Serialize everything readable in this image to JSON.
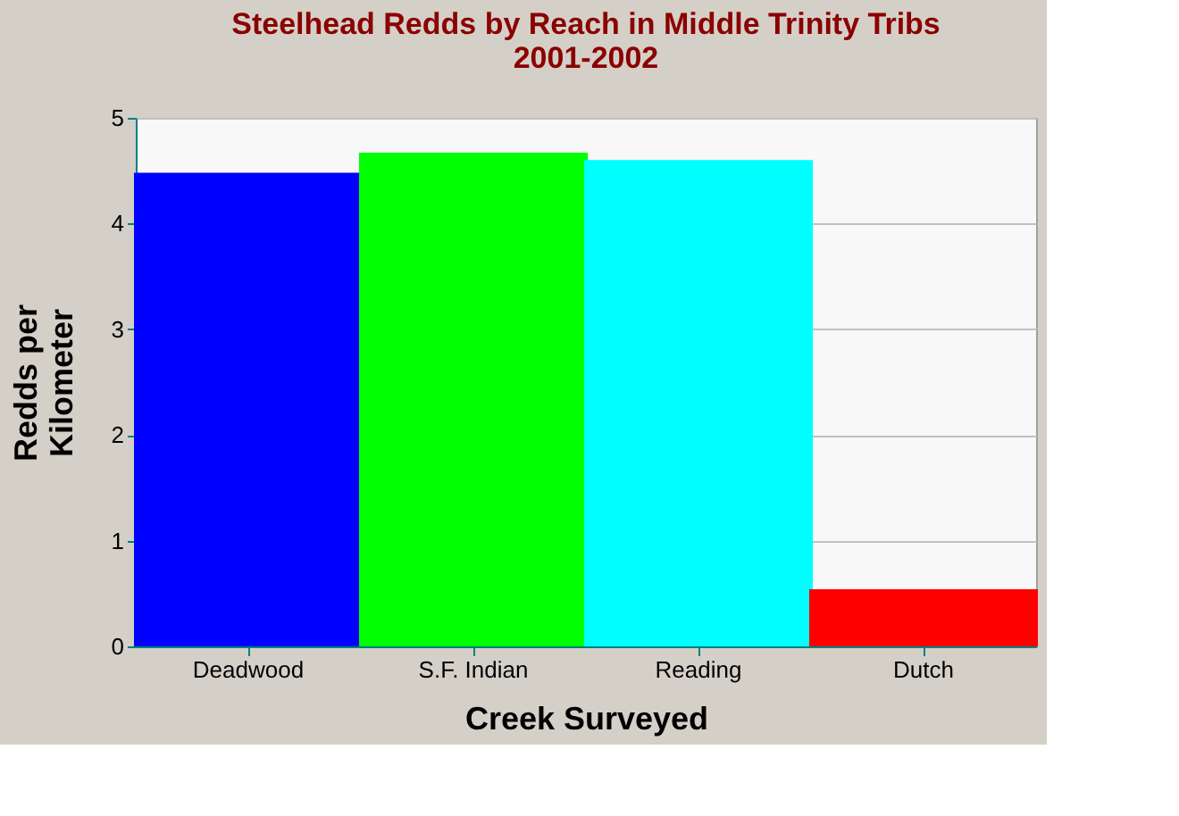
{
  "chart_data": {
    "type": "bar",
    "title": "Steelhead Redds by Reach in Middle Trinity Tribs\n2001-2002",
    "xlabel": "Creek Surveyed",
    "ylabel": "Redds per Kilometer",
    "categories": [
      "Deadwood",
      "S.F. Indian",
      "Reading",
      "Dutch"
    ],
    "values": [
      4.48,
      4.67,
      4.6,
      0.54
    ],
    "colors": [
      "#0000ff",
      "#00ff00",
      "#00ffff",
      "#ff0000"
    ],
    "ylim": [
      0,
      5
    ],
    "yticks": [
      0,
      1,
      2,
      3,
      4,
      5
    ],
    "grid": "y",
    "legend": false
  }
}
